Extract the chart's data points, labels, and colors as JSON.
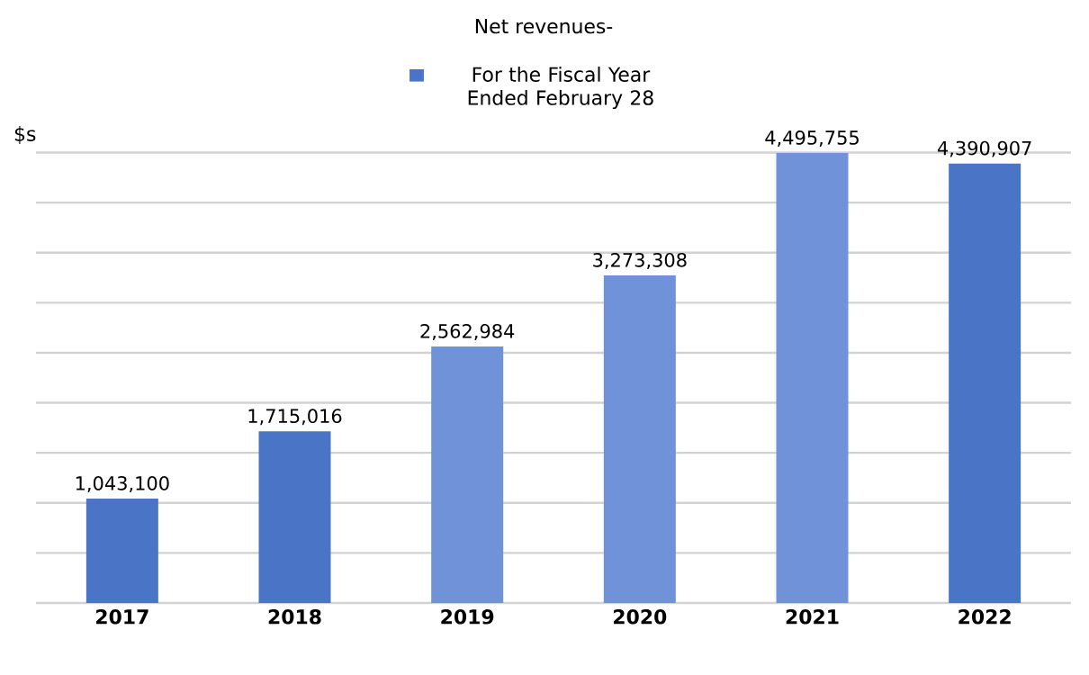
{
  "chart_data": {
    "type": "bar",
    "title": "Net revenues-",
    "ylabel": "$s",
    "categories": [
      "2017",
      "2018",
      "2019",
      "2020",
      "2021",
      "2022"
    ],
    "series": [
      {
        "name": "For the Fiscal Year Ended February 28",
        "color": "#4a74c6",
        "colors": [
          "#4a74c6",
          "#4a74c6",
          "#6f92d8",
          "#6f92d8",
          "#6f92d8",
          "#4a74c6"
        ],
        "values": [
          1043100,
          1715016,
          2562984,
          3273308,
          4495755,
          4390907
        ],
        "value_labels": [
          "1,043,100",
          "1,715,016",
          "2,562,984",
          "3,273,308",
          "4,495,755",
          "4,390,907"
        ]
      }
    ],
    "grid": "y",
    "legend": "top",
    "tick_labels": "x"
  }
}
